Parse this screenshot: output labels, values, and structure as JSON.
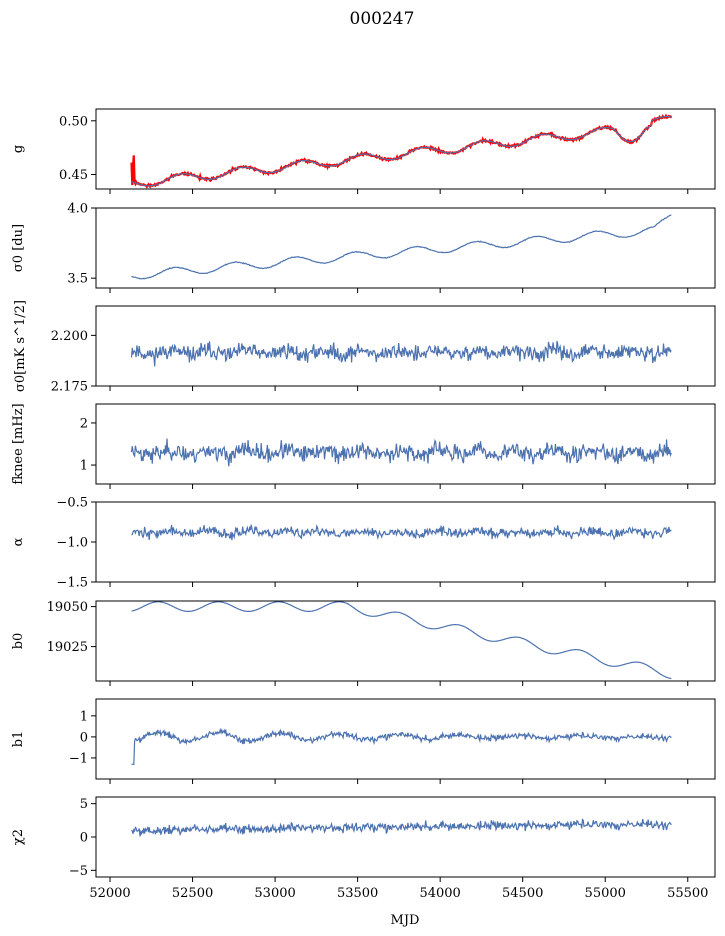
{
  "title": "000247",
  "xlabel": "MJD",
  "chart_data": [
    {
      "type": "line",
      "ylabel": "g",
      "ylim": [
        0.4365,
        0.511
      ],
      "yticks": [
        0.45,
        0.5
      ],
      "ytick_labels": [
        "0.45",
        "0.50"
      ],
      "gen": "g",
      "colors": [
        "#4c72b0",
        "#ff0000"
      ]
    },
    {
      "type": "line",
      "ylabel": "σ0 [du]",
      "ylim": [
        3.43,
        4.0
      ],
      "yticks": [
        3.5,
        4.0
      ],
      "ytick_labels": [
        "3.5",
        "4.0"
      ],
      "gen": "sigma_du",
      "colors": [
        "#4c72b0"
      ]
    },
    {
      "type": "line",
      "ylabel": "σ0[mK s^1/2]",
      "ylim": [
        2.175,
        2.2145
      ],
      "yticks": [
        2.175,
        2.2
      ],
      "ytick_labels": [
        "2.175",
        "2.200"
      ],
      "gen": "noise",
      "params": {
        "base": 2.1915,
        "amp": 0.0038,
        "seed": 11
      },
      "colors": [
        "#4c72b0"
      ]
    },
    {
      "type": "line",
      "ylabel": "fknee [mHz]",
      "ylim": [
        0.55,
        2.45
      ],
      "yticks": [
        1,
        2
      ],
      "ytick_labels": [
        "1",
        "2"
      ],
      "gen": "noise",
      "params": {
        "base": 1.3,
        "amp": 0.2,
        "seed": 23
      },
      "colors": [
        "#4c72b0"
      ]
    },
    {
      "type": "line",
      "ylabel": "α",
      "ylim": [
        -1.5,
        -0.5
      ],
      "yticks": [
        -1.5,
        -1.0,
        -0.5
      ],
      "ytick_labels": [
        "−1.5",
        "−1.0",
        "−0.5"
      ],
      "gen": "noise",
      "params": {
        "base": -0.88,
        "amp": 0.06,
        "seed": 37
      },
      "colors": [
        "#4c72b0"
      ]
    },
    {
      "type": "line",
      "ylabel": "b0",
      "ylim": [
        19003.5,
        19053.5
      ],
      "yticks": [
        19025,
        19050
      ],
      "ytick_labels": [
        "19025",
        "19050"
      ],
      "gen": "b0",
      "colors": [
        "#4c72b0"
      ]
    },
    {
      "type": "line",
      "ylabel": "b1",
      "ylim": [
        -2.0,
        1.8
      ],
      "yticks": [
        -1,
        0,
        1
      ],
      "ytick_labels": [
        "−1",
        "0",
        "1"
      ],
      "gen": "b1",
      "colors": [
        "#4c72b0"
      ]
    },
    {
      "type": "line",
      "ylabel": "χ2",
      "ylim": [
        -6,
        6
      ],
      "yticks": [
        -5,
        0,
        5
      ],
      "ytick_labels": [
        "−5",
        "0",
        "5"
      ],
      "gen": "chi2",
      "colors": [
        "#4c72b0"
      ]
    }
  ],
  "xaxis": {
    "xlim": [
      51915,
      55665
    ],
    "xticks": [
      52000,
      52500,
      53000,
      53500,
      54000,
      54500,
      55000,
      55500
    ],
    "xtick_labels": [
      "52000",
      "52500",
      "53000",
      "53500",
      "54000",
      "54500",
      "55000",
      "55500"
    ],
    "data_range": [
      52130,
      55400
    ]
  }
}
